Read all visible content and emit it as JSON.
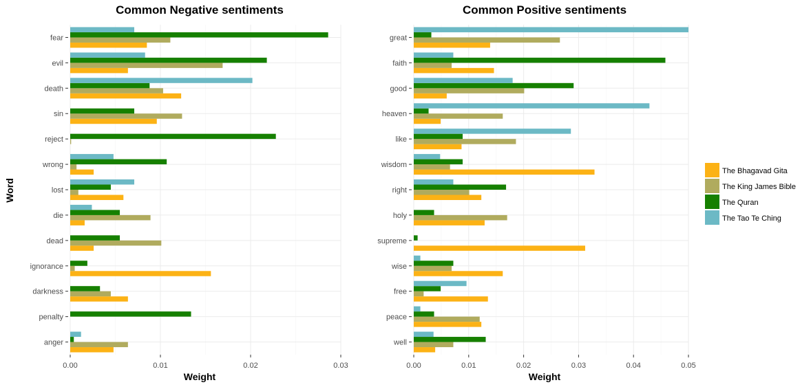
{
  "y_axis_title": "Word",
  "chart_data": [
    {
      "type": "bar",
      "orientation": "horizontal",
      "title": "Common Negative sentiments",
      "xlabel": "Weight",
      "ylabel": "Word",
      "xlim": [
        0,
        0.03
      ],
      "x_ticks": [
        "0.00",
        "0.01",
        "0.02",
        "0.03"
      ],
      "grid": true,
      "categories": [
        "fear",
        "evil",
        "death",
        "sin",
        "reject",
        "wrong",
        "lost",
        "die",
        "dead",
        "ignorance",
        "darkness",
        "penalty",
        "anger"
      ],
      "series": [
        {
          "name": "The Bhagavad Gita",
          "values": [
            0.0085,
            0.0064,
            0.0123,
            0.0096,
            0,
            0.0026,
            0.0059,
            0.0016,
            0.0026,
            0.0156,
            0.0064,
            0,
            0.0048
          ]
        },
        {
          "name": "The King James Bible",
          "values": [
            0.0111,
            0.0169,
            0.0103,
            0.0124,
            0.0001,
            0.0007,
            0.0009,
            0.0089,
            0.0101,
            0.0005,
            0.0045,
            0,
            0.0064
          ]
        },
        {
          "name": "The Quran",
          "values": [
            0.0286,
            0.0218,
            0.0088,
            0.0071,
            0.0228,
            0.0107,
            0.0045,
            0.0055,
            0.0055,
            0.0019,
            0.0033,
            0.0134,
            0.0004
          ]
        },
        {
          "name": "The Tao Te Ching",
          "values": [
            0.0071,
            0.0083,
            0.0202,
            0,
            0,
            0.0048,
            0.0071,
            0.0024,
            0,
            0,
            0,
            0,
            0.0012
          ]
        }
      ]
    },
    {
      "type": "bar",
      "orientation": "horizontal",
      "title": "Common Positive sentiments",
      "xlabel": "Weight",
      "ylabel": "",
      "xlim": [
        0,
        0.05
      ],
      "x_ticks": [
        "0.00",
        "0.01",
        "0.02",
        "0.03",
        "0.04",
        "0.05"
      ],
      "grid": true,
      "categories": [
        "great",
        "faith",
        "good",
        "heaven",
        "like",
        "wisdom",
        "right",
        "holy",
        "supreme",
        "wise",
        "free",
        "peace",
        "well"
      ],
      "series": [
        {
          "name": "The Bhagavad Gita",
          "values": [
            0.0139,
            0.0146,
            0.006,
            0.0049,
            0.0087,
            0.0329,
            0.0123,
            0.0129,
            0.0312,
            0.0162,
            0.0135,
            0.0123,
            0.0039
          ]
        },
        {
          "name": "The King James Bible",
          "values": [
            0.0266,
            0.0069,
            0.0201,
            0.0162,
            0.0186,
            0.0066,
            0.0101,
            0.017,
            0,
            0.0069,
            0.0018,
            0.012,
            0.0072
          ]
        },
        {
          "name": "The Quran",
          "values": [
            0.0032,
            0.0458,
            0.0291,
            0.0027,
            0.0089,
            0.0089,
            0.0168,
            0.0037,
            0.0007,
            0.0072,
            0.0049,
            0.0037,
            0.0131
          ]
        },
        {
          "name": "The Tao Te Ching",
          "values": [
            0.05,
            0.0072,
            0.018,
            0.0429,
            0.0286,
            0.0048,
            0.0072,
            0,
            0,
            0.0012,
            0.0096,
            0.0012,
            0.0036
          ]
        }
      ]
    }
  ],
  "legend": {
    "position": "right",
    "items": [
      {
        "label": "The Bhagavad Gita",
        "color": "#fcb215"
      },
      {
        "label": "The King James Bible",
        "color": "#b0ab5e"
      },
      {
        "label": "The Quran",
        "color": "#168000"
      },
      {
        "label": "The Tao Te Ching",
        "color": "#6cb9c5"
      }
    ]
  }
}
